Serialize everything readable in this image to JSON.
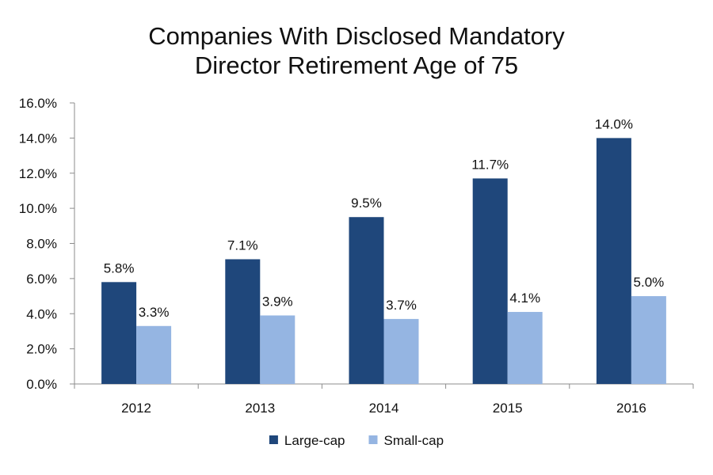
{
  "chart_data": {
    "type": "bar",
    "title_lines": [
      "Companies With Disclosed Mandatory",
      "Director Retirement Age of 75"
    ],
    "categories": [
      "2012",
      "2013",
      "2014",
      "2015",
      "2016"
    ],
    "series": [
      {
        "name": "Large-cap",
        "color": "#1f477b",
        "values": [
          5.8,
          7.1,
          9.5,
          11.7,
          14.0
        ],
        "labels": [
          "5.8%",
          "7.1%",
          "9.5%",
          "11.7%",
          "14.0%"
        ]
      },
      {
        "name": "Small-cap",
        "color": "#95b5e2",
        "values": [
          3.3,
          3.9,
          3.7,
          4.1,
          5.0
        ],
        "labels": [
          "3.3%",
          "3.9%",
          "3.7%",
          "4.1%",
          "5.0%"
        ]
      }
    ],
    "ylim": [
      0,
      16
    ],
    "yticks": [
      0,
      2,
      4,
      6,
      8,
      10,
      12,
      14,
      16
    ],
    "ytick_labels": [
      "0.0%",
      "2.0%",
      "4.0%",
      "6.0%",
      "8.0%",
      "10.0%",
      "12.0%",
      "14.0%",
      "16.0%"
    ],
    "grid": false,
    "legend_position": "bottom",
    "xlabel": "",
    "ylabel": ""
  }
}
